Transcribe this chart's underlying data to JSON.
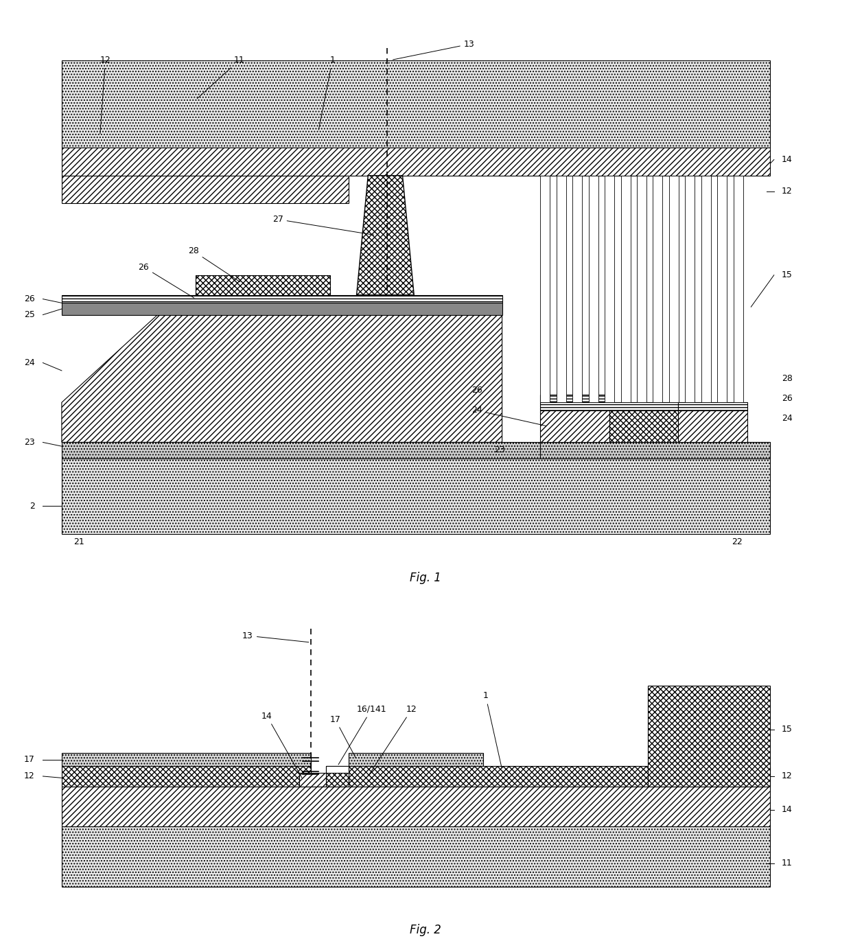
{
  "fig_width": 12.4,
  "fig_height": 13.71,
  "bg_color": "#ffffff",
  "fig1_caption": "Fig. 1",
  "fig2_caption": "Fig. 2"
}
